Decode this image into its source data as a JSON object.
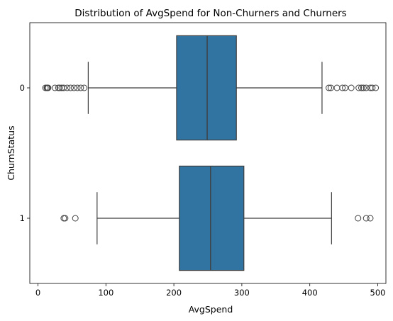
{
  "chart_data": {
    "type": "boxplot",
    "orientation": "horizontal",
    "title": "Distribution of AvgSpend for Non-Churners and Churners",
    "xlabel": "AvgSpend",
    "ylabel": "ChurnStatus",
    "xlim": [
      -12,
      512
    ],
    "xticks": [
      0,
      100,
      200,
      300,
      400,
      500
    ],
    "categories": [
      "0",
      "1"
    ],
    "grid": false,
    "colors": {
      "box": "#3274a1",
      "line": "#3f3f3f"
    },
    "boxes": [
      {
        "category": "0",
        "whisker_low": 74,
        "q1": 204,
        "median": 249,
        "q3": 292,
        "whisker_high": 418,
        "outliers": [
          11,
          13,
          14,
          15,
          25,
          30,
          32,
          35,
          38,
          43,
          48,
          53,
          58,
          63,
          68,
          428,
          431,
          440,
          448,
          452,
          461,
          472,
          476,
          479,
          483,
          489,
          492,
          497
        ]
      },
      {
        "category": "1",
        "whisker_low": 87,
        "q1": 208,
        "median": 254,
        "q3": 303,
        "whisker_high": 432,
        "outliers": [
          38,
          40,
          55,
          471,
          483,
          489
        ]
      }
    ]
  }
}
